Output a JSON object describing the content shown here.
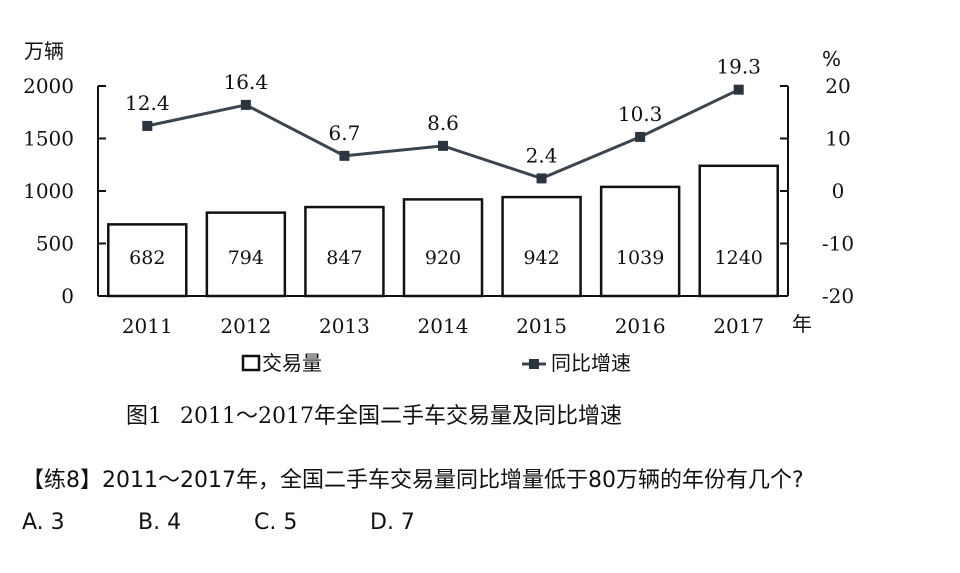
{
  "chart_data": {
    "type": "bar+line",
    "categories": [
      "2011",
      "2012",
      "2013",
      "2014",
      "2015",
      "2016",
      "2017"
    ],
    "series": [
      {
        "name": "交易量",
        "type": "bar",
        "axis": "left",
        "values": [
          682,
          794,
          847,
          920,
          942,
          1039,
          1240
        ]
      },
      {
        "name": "同比增速",
        "type": "line",
        "axis": "right",
        "values": [
          12.4,
          16.4,
          6.7,
          8.6,
          2.4,
          10.3,
          19.3
        ]
      }
    ],
    "left_axis": {
      "unit": "万辆",
      "range": [
        0,
        2000
      ],
      "ticks": [
        "0",
        "500",
        "1000",
        "1500",
        "2000"
      ]
    },
    "right_axis": {
      "unit": "%",
      "range": [
        -20,
        20
      ],
      "ticks": [
        "-20",
        "-10",
        "0",
        "10",
        "20"
      ]
    },
    "x_unit": "年",
    "legend": {
      "bar_label": "交易量",
      "line_label": "同比增速",
      "placement": "bottom"
    },
    "grid": false
  },
  "caption": {
    "figure_no": "图1",
    "title": "2011～2017年全国二手车交易量及同比增速"
  },
  "question": {
    "text": "【练8】2011～2017年，全国二手车交易量同比增量低于80万辆的年份有几个?"
  },
  "options": [
    "A. 3",
    "B. 4",
    "C. 5",
    "D. 7"
  ]
}
